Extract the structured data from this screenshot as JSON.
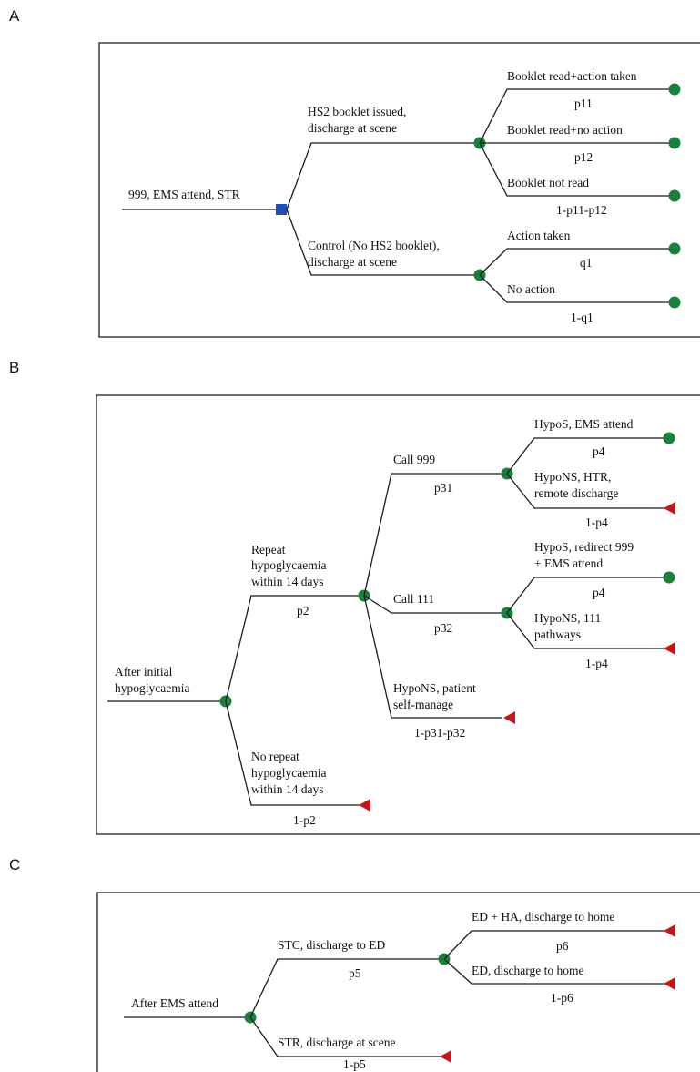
{
  "panels": {
    "a": {
      "letter": "A",
      "root_label": "999, EMS attend, STR",
      "branch_booklet": [
        "HS2 booklet issued,",
        "discharge at scene"
      ],
      "branch_control": [
        "Control (No HS2 booklet),",
        "discharge at scene"
      ],
      "booklet_read_action": "Booklet read+action taken",
      "p11": "p11",
      "booklet_read_no_action": "Booklet read+no action",
      "p12": "p12",
      "booklet_not_read": "Booklet not read",
      "p_not_read": "1-p11-p12",
      "action_taken": "Action taken",
      "q1": "q1",
      "no_action": "No action",
      "p_no_action": "1-q1"
    },
    "b": {
      "letter": "B",
      "root_label": [
        "After initial",
        "hypoglycaemia"
      ],
      "repeat": [
        "Repeat",
        "hypoglycaemia",
        "within 14 days"
      ],
      "p2": "p2",
      "no_repeat": [
        "No repeat",
        "hypoglycaemia",
        "within 14 days"
      ],
      "p_no_repeat": "1-p2",
      "call999": "Call 999",
      "p31": "p31",
      "call111": "Call 111",
      "p32": "p32",
      "self_manage": [
        "HypoNS, patient",
        "self-manage"
      ],
      "p_self": "1-p31-p32",
      "hypos_ems": "HypoS, EMS attend",
      "p4a": "p4",
      "hypons_htr": [
        "HypoNS, HTR,",
        "remote discharge"
      ],
      "p4a_c": "1-p4",
      "hypos_redirect": [
        "HypoS, redirect 999",
        "+ EMS attend"
      ],
      "p4b": "p4",
      "hypons_111": [
        "HypoNS, 111",
        "pathways"
      ],
      "p4b_c": "1-p4"
    },
    "c": {
      "letter": "C",
      "root_label": "After EMS attend",
      "stc": "STC, discharge to ED",
      "p5": "p5",
      "str": "STR, discharge at scene",
      "p_str": "1-p5",
      "ed_ha": "ED + HA, discharge to home",
      "p6": "p6",
      "ed_home": "ED, discharge to home",
      "p_ed_home": "1-p6"
    }
  }
}
